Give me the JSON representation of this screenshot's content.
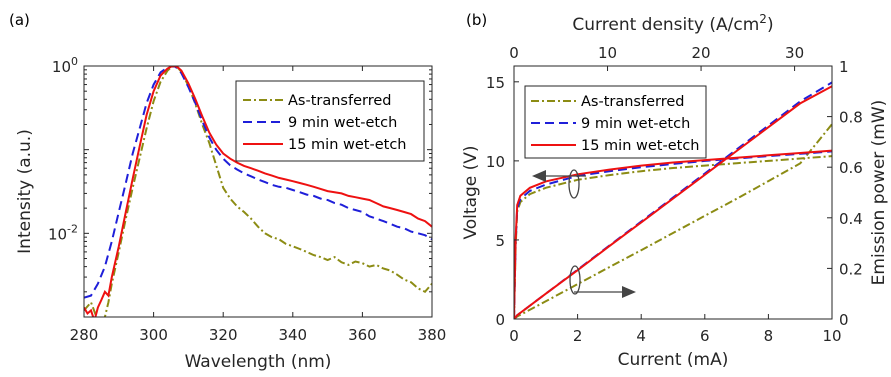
{
  "chart_data": [
    {
      "panel_label": "(a)",
      "type": "line",
      "xlabel": "Wavelength (nm)",
      "ylabel": "Intensity (a.u.)",
      "xlim": [
        280,
        380
      ],
      "ylim_log10": [
        -3.0,
        0.0
      ],
      "yscale": "log",
      "xticks": [
        "280",
        "300",
        "320",
        "340",
        "360",
        "380"
      ],
      "yticks": [
        {
          "base": "10",
          "exp": "0",
          "log10": 0
        },
        {
          "base": "10",
          "exp": "-2",
          "log10": -2
        }
      ],
      "grid": false,
      "legend_position": "top-right",
      "series": [
        {
          "name": "As-transferred",
          "color": "#8c8c14",
          "dash": "dashdot",
          "x": [
            280,
            282,
            284,
            285,
            286,
            287,
            288,
            290,
            292,
            294,
            296,
            298,
            300,
            302,
            304,
            305,
            306,
            307,
            308,
            310,
            312,
            314,
            316,
            318,
            320,
            322,
            324,
            326,
            328,
            330,
            332,
            334,
            336,
            338,
            340,
            342,
            344,
            346,
            348,
            350,
            352,
            354,
            356,
            358,
            360,
            362,
            364,
            366,
            368,
            370,
            372,
            374,
            376,
            378,
            380
          ],
          "y": [
            0.0012,
            0.0015,
            0.0009,
            0.0007,
            0.001,
            0.0015,
            0.0025,
            0.006,
            0.015,
            0.035,
            0.08,
            0.18,
            0.38,
            0.65,
            0.88,
            0.96,
            1.0,
            0.95,
            0.85,
            0.58,
            0.35,
            0.2,
            0.12,
            0.065,
            0.035,
            0.026,
            0.021,
            0.018,
            0.015,
            0.012,
            0.01,
            0.009,
            0.0085,
            0.0075,
            0.007,
            0.0065,
            0.006,
            0.0055,
            0.0052,
            0.0048,
            0.0052,
            0.0045,
            0.0042,
            0.0046,
            0.0044,
            0.004,
            0.0042,
            0.0038,
            0.0036,
            0.0032,
            0.0028,
            0.0026,
            0.0022,
            0.002,
            0.0025
          ]
        },
        {
          "name": "9 min wet-etch",
          "color": "#1f1fd9",
          "dash": "dashed",
          "x": [
            280,
            282,
            284,
            286,
            288,
            290,
            292,
            294,
            296,
            298,
            300,
            302,
            304,
            305,
            306,
            307,
            308,
            310,
            312,
            314,
            316,
            318,
            320,
            322,
            324,
            326,
            328,
            330,
            332,
            334,
            336,
            338,
            340,
            342,
            344,
            346,
            348,
            350,
            352,
            354,
            356,
            358,
            360,
            362,
            364,
            366,
            368,
            370,
            372,
            374,
            376,
            378,
            380
          ],
          "y": [
            0.0017,
            0.0018,
            0.0025,
            0.004,
            0.008,
            0.018,
            0.04,
            0.09,
            0.18,
            0.36,
            0.6,
            0.84,
            0.96,
            1.0,
            0.99,
            0.93,
            0.82,
            0.56,
            0.36,
            0.22,
            0.14,
            0.1,
            0.078,
            0.065,
            0.058,
            0.052,
            0.048,
            0.044,
            0.041,
            0.038,
            0.036,
            0.035,
            0.033,
            0.031,
            0.029,
            0.028,
            0.026,
            0.025,
            0.023,
            0.022,
            0.02,
            0.019,
            0.018,
            0.016,
            0.015,
            0.014,
            0.013,
            0.012,
            0.0115,
            0.0105,
            0.01,
            0.0095,
            0.0085
          ]
        },
        {
          "name": "15 min wet-etch",
          "color": "#ee1111",
          "dash": "solid",
          "x": [
            280,
            281,
            282,
            283,
            284,
            285,
            286,
            287,
            288,
            290,
            292,
            294,
            296,
            298,
            300,
            302,
            304,
            305,
            306,
            307,
            308,
            310,
            312,
            314,
            316,
            318,
            320,
            322,
            324,
            326,
            328,
            330,
            332,
            334,
            336,
            338,
            340,
            342,
            344,
            346,
            348,
            350,
            352,
            354,
            356,
            358,
            360,
            362,
            364,
            366,
            368,
            370,
            372,
            374,
            376,
            378,
            380
          ],
          "y": [
            0.0013,
            0.0011,
            0.0012,
            0.0009,
            0.0013,
            0.0016,
            0.002,
            0.0018,
            0.003,
            0.007,
            0.018,
            0.045,
            0.11,
            0.26,
            0.5,
            0.77,
            0.93,
            0.98,
            1.0,
            0.96,
            0.88,
            0.62,
            0.4,
            0.25,
            0.16,
            0.115,
            0.09,
            0.078,
            0.07,
            0.064,
            0.06,
            0.056,
            0.052,
            0.049,
            0.046,
            0.044,
            0.042,
            0.04,
            0.038,
            0.036,
            0.034,
            0.032,
            0.031,
            0.03,
            0.028,
            0.027,
            0.026,
            0.025,
            0.023,
            0.021,
            0.02,
            0.019,
            0.018,
            0.017,
            0.015,
            0.014,
            0.012
          ]
        }
      ]
    },
    {
      "panel_label": "(b)",
      "type": "line",
      "xlabel": "Current (mA)",
      "ylabel": "Voltage (V)",
      "ylabel_right": "Emission power (mW)",
      "xlabel_top_text": "Current density (A/cm",
      "xlabel_top_sup": "2",
      "xlabel_top_close": ")",
      "xlim": [
        0,
        10
      ],
      "ylim": [
        0,
        16
      ],
      "ylim_right": [
        0,
        1
      ],
      "xlim_top": [
        0,
        34
      ],
      "xticks": [
        "0",
        "2",
        "4",
        "6",
        "8",
        "10"
      ],
      "yticks": [
        "0",
        "5",
        "10",
        "15"
      ],
      "yticks_right": [
        "0",
        "0.2",
        "0.4",
        "0.6",
        "0.8",
        "1"
      ],
      "xticks_top": [
        "0",
        "10",
        "20",
        "30"
      ],
      "grid": false,
      "legend_position": "top-left",
      "series": [
        {
          "name": "As-transferred",
          "color": "#8c8c14",
          "dash": "dashdot",
          "voltage_x": [
            0,
            0.05,
            0.1,
            0.2,
            0.5,
            1,
            2,
            3,
            4,
            5,
            6,
            7,
            8,
            9,
            10
          ],
          "voltage_y": [
            0,
            4.5,
            6.8,
            7.4,
            7.9,
            8.3,
            8.8,
            9.1,
            9.35,
            9.55,
            9.7,
            9.85,
            10.0,
            10.15,
            10.3
          ],
          "power_x": [
            0,
            0.1,
            1,
            2,
            3,
            4,
            5,
            6,
            7,
            8,
            9,
            10
          ],
          "power_y": [
            0,
            0.01,
            0.07,
            0.138,
            0.205,
            0.272,
            0.34,
            0.408,
            0.475,
            0.545,
            0.615,
            0.77
          ]
        },
        {
          "name": "9 min wet-etch",
          "color": "#1f1fd9",
          "dash": "dashed",
          "voltage_x": [
            0,
            0.05,
            0.1,
            0.2,
            0.5,
            1,
            2,
            3,
            4,
            5,
            6,
            7,
            8,
            9,
            10
          ],
          "voltage_y": [
            0,
            4.8,
            7.0,
            7.6,
            8.1,
            8.5,
            9.05,
            9.35,
            9.6,
            9.8,
            10.0,
            10.15,
            10.3,
            10.45,
            10.6
          ],
          "power_x": [
            0,
            0.1,
            1,
            2,
            3,
            4,
            5,
            6,
            7,
            8,
            9,
            10
          ],
          "power_y": [
            0,
            0.015,
            0.1,
            0.195,
            0.29,
            0.385,
            0.48,
            0.575,
            0.67,
            0.765,
            0.86,
            0.935
          ]
        },
        {
          "name": "15 min wet-etch",
          "color": "#ee1111",
          "dash": "solid",
          "voltage_x": [
            0,
            0.05,
            0.1,
            0.2,
            0.5,
            1,
            2,
            3,
            4,
            5,
            6,
            7,
            8,
            9,
            10
          ],
          "voltage_y": [
            0,
            5.0,
            7.2,
            7.8,
            8.3,
            8.7,
            9.15,
            9.45,
            9.7,
            9.9,
            10.05,
            10.2,
            10.35,
            10.5,
            10.65
          ],
          "power_x": [
            0,
            0.1,
            1,
            2,
            3,
            4,
            5,
            6,
            7,
            8,
            9,
            10
          ],
          "power_y": [
            0,
            0.015,
            0.1,
            0.193,
            0.288,
            0.382,
            0.476,
            0.57,
            0.664,
            0.758,
            0.852,
            0.92
          ]
        }
      ]
    }
  ]
}
